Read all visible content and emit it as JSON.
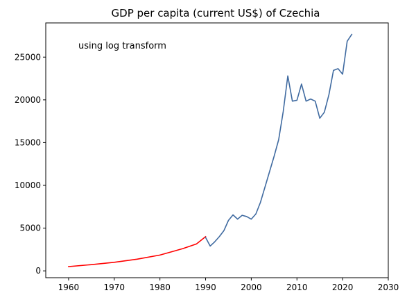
{
  "chart_data": {
    "type": "line",
    "title": "GDP per capita (current US$) of Czechia",
    "annotation": "using log transform",
    "xlabel": "",
    "ylabel": "",
    "xlim": [
      1955,
      2030
    ],
    "ylim": [
      -800,
      29000
    ],
    "xticks": [
      1960,
      1970,
      1980,
      1990,
      2000,
      2010,
      2020,
      2030
    ],
    "yticks": [
      0,
      5000,
      10000,
      15000,
      20000,
      25000
    ],
    "grid": false,
    "legend": "none",
    "series": [
      {
        "color": "#ff0000",
        "x": [
          1960,
          1965,
          1970,
          1975,
          1980,
          1985,
          1988,
          1990
        ],
        "y": [
          500,
          730,
          1000,
          1370,
          1850,
          2600,
          3150,
          4000
        ]
      },
      {
        "color": "#3f6aa0",
        "x": [
          1990,
          1991,
          1992,
          1993,
          1994,
          1995,
          1996,
          1997,
          1998,
          1999,
          2000,
          2001,
          2002,
          2003,
          2004,
          2005,
          2006,
          2007,
          2008,
          2009,
          2010,
          2011,
          2012,
          2013,
          2014,
          2015,
          2016,
          2017,
          2018,
          2019,
          2020,
          2021,
          2022
        ],
        "y": [
          3900,
          2900,
          3400,
          4000,
          4700,
          5900,
          6550,
          6050,
          6500,
          6350,
          6050,
          6650,
          8000,
          9800,
          11600,
          13400,
          15350,
          18650,
          22800,
          19850,
          19950,
          21850,
          19850,
          20100,
          19850,
          17850,
          18550,
          20600,
          23450,
          23650,
          23000,
          26850,
          27650
        ]
      }
    ]
  }
}
